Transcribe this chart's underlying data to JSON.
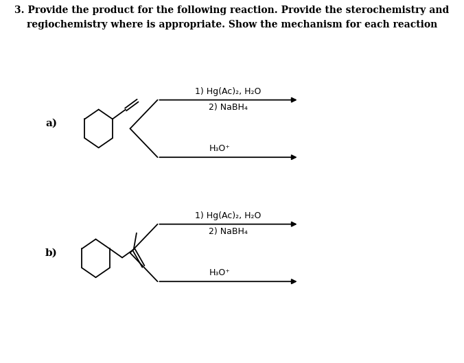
{
  "background_color": "#ffffff",
  "text_color": "#000000",
  "label_a": "a)",
  "label_b": "b)",
  "reagent_top": "1) Hg(Ac)₂, H₂O",
  "reagent_mid": "2) NaBH₄",
  "reagent_acid": "H₃O⁺",
  "title_line1": "3. Provide the product for the following reaction. Provide the sterochemistry and",
  "title_line2": "regiochemistry where is appropriate. Show the mechanism for each reaction",
  "fig_width": 6.76,
  "fig_height": 5.29,
  "lw": 1.3
}
